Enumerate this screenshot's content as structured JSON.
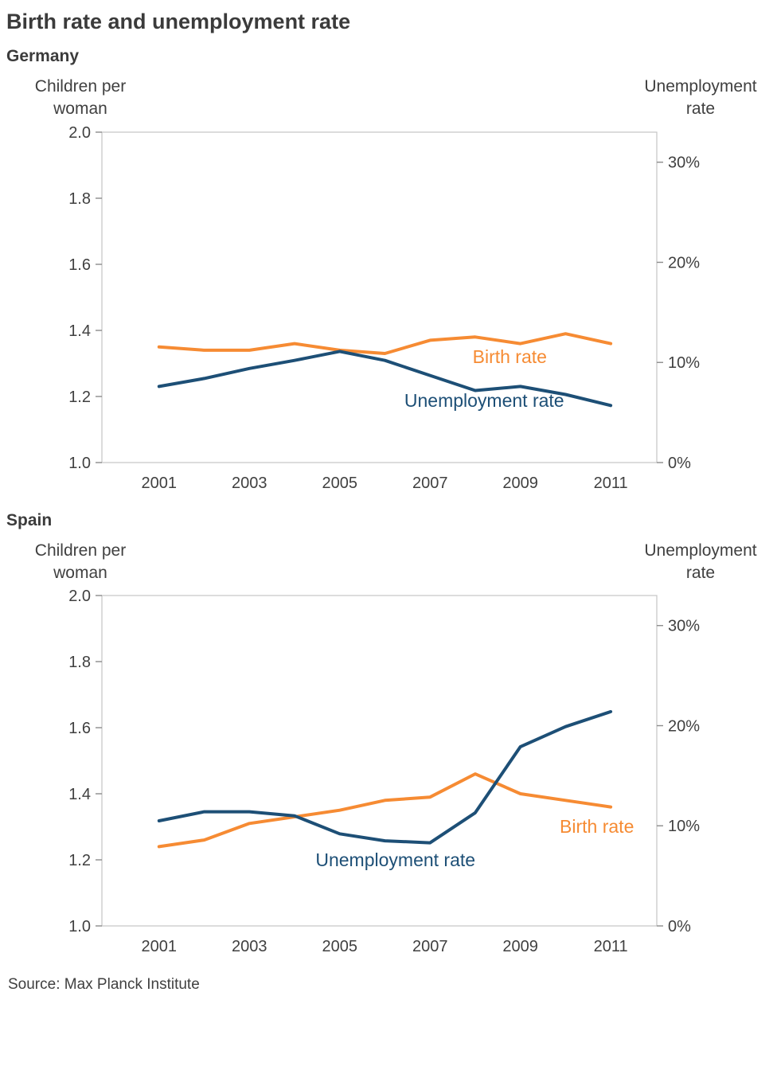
{
  "page": {
    "title": "Birth rate and unemployment rate",
    "source": "Source: Max Planck Institute"
  },
  "colors": {
    "birth_rate": "#f68b33",
    "unemployment": "#1d4f76",
    "frame": "#c4c4c4",
    "tick": "#8c8c8c",
    "text": "#404040"
  },
  "chart_data": [
    {
      "type": "line",
      "title": "Germany",
      "left_axis_label": "Children per woman",
      "right_axis_label": "Unemployment rate",
      "x": [
        2001,
        2002,
        2003,
        2004,
        2005,
        2006,
        2007,
        2008,
        2009,
        2010,
        2011
      ],
      "x_tick_labels": [
        "2001",
        "2003",
        "2005",
        "2007",
        "2009",
        "2011"
      ],
      "left_axis": {
        "min": 1.0,
        "max": 2.0,
        "tick_values": [
          2.0,
          1.8,
          1.6,
          1.4,
          1.2,
          1.0
        ],
        "ticks": [
          "2.0",
          "1.8",
          "1.6",
          "1.4",
          "1.2",
          "1.0"
        ]
      },
      "right_axis": {
        "min": 0,
        "max": 33,
        "tick_values": [
          30,
          20,
          10,
          0
        ],
        "ticks": [
          "30%",
          "20%",
          "10%",
          "0%"
        ]
      },
      "series": [
        {
          "name": "Birth rate",
          "axis": "left",
          "color_key": "birth_rate",
          "values": [
            1.35,
            1.34,
            1.34,
            1.36,
            1.34,
            1.33,
            1.37,
            1.38,
            1.36,
            1.39,
            1.36
          ],
          "label": {
            "text": "Birth rate",
            "x_frac": 0.735,
            "y_frac": 0.699
          }
        },
        {
          "name": "Unemployment rate",
          "axis": "right",
          "color_key": "unemployment",
          "values": [
            7.6,
            8.4,
            9.4,
            10.2,
            11.1,
            10.2,
            8.7,
            7.2,
            7.6,
            6.8,
            5.7
          ],
          "label": {
            "text": "Unemployment rate",
            "x_frac": 0.689,
            "y_frac": 0.831
          }
        }
      ]
    },
    {
      "type": "line",
      "title": "Spain",
      "left_axis_label": "Children per woman",
      "right_axis_label": "Unemployment rate",
      "x": [
        2001,
        2002,
        2003,
        2004,
        2005,
        2006,
        2007,
        2008,
        2009,
        2010,
        2011
      ],
      "x_tick_labels": [
        "2001",
        "2003",
        "2005",
        "2007",
        "2009",
        "2011"
      ],
      "left_axis": {
        "min": 1.0,
        "max": 2.0,
        "tick_values": [
          2.0,
          1.8,
          1.6,
          1.4,
          1.2,
          1.0
        ],
        "ticks": [
          "2.0",
          "1.8",
          "1.6",
          "1.4",
          "1.2",
          "1.0"
        ]
      },
      "right_axis": {
        "min": 0,
        "max": 33,
        "tick_values": [
          30,
          20,
          10,
          0
        ],
        "ticks": [
          "30%",
          "20%",
          "10%",
          "0%"
        ]
      },
      "series": [
        {
          "name": "Birth rate",
          "axis": "left",
          "color_key": "birth_rate",
          "values": [
            1.24,
            1.26,
            1.31,
            1.33,
            1.35,
            1.38,
            1.39,
            1.46,
            1.4,
            1.38,
            1.36
          ],
          "label": {
            "text": "Birth rate",
            "x_frac": 0.892,
            "y_frac": 0.718
          }
        },
        {
          "name": "Unemployment rate",
          "axis": "right",
          "color_key": "unemployment",
          "values": [
            10.5,
            11.4,
            11.4,
            11.0,
            9.2,
            8.5,
            8.3,
            11.3,
            17.9,
            19.9,
            21.4
          ],
          "label": {
            "text": "Unemployment rate",
            "x_frac": 0.529,
            "y_frac": 0.819
          }
        }
      ]
    }
  ]
}
